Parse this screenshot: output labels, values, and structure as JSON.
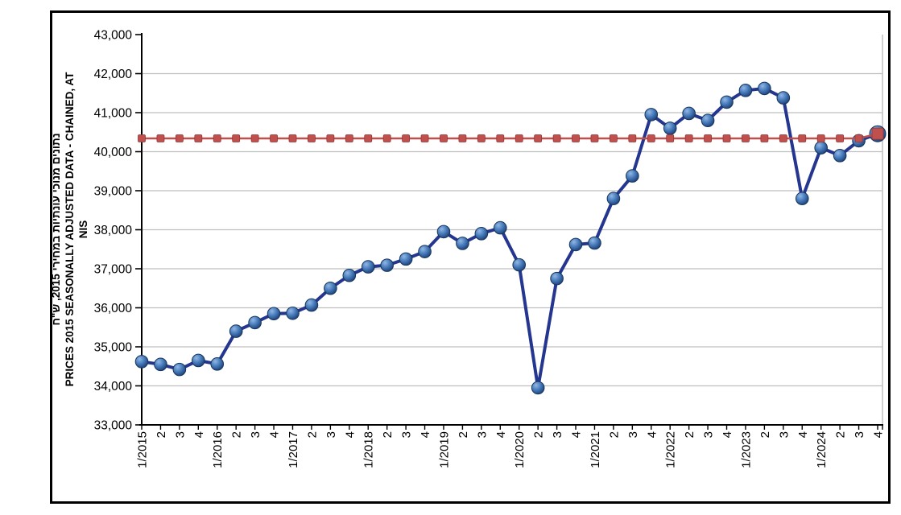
{
  "chart_data": {
    "type": "line",
    "title": "",
    "ylabel_lines": [
      "נתונים מנוכי עונתיות במחירי 2015, ש\"ח",
      "PRICES 2015 SEASONALLY ADJUSTED DATA - CHAINED, AT",
      "NIS"
    ],
    "categories": [
      "1/2015",
      "2",
      "3",
      "4",
      "1/2016",
      "2",
      "3",
      "4",
      "1/2017",
      "2",
      "3",
      "4",
      "1/2018",
      "2",
      "3",
      "4",
      "1/2019",
      "2",
      "3",
      "4",
      "1/2020",
      "2",
      "3",
      "4",
      "1/2021",
      "2",
      "3",
      "4",
      "1/2022",
      "2",
      "3",
      "4",
      "1/2023",
      "2",
      "3",
      "4",
      "1/2024",
      "2",
      "3",
      "4"
    ],
    "series": [
      {
        "name": "seasonally-adjusted-data",
        "marker": "circle",
        "color": "#24368F",
        "marker_fill": "#4A7EBD",
        "values": [
          34620,
          34550,
          34420,
          34650,
          34560,
          35400,
          35620,
          35850,
          35860,
          36070,
          36500,
          36830,
          37050,
          37090,
          37250,
          37440,
          37950,
          37650,
          37900,
          38050,
          37100,
          33950,
          36750,
          37620,
          37660,
          38800,
          39380,
          40950,
          40600,
          40980,
          40800,
          41270,
          41570,
          41620,
          41380,
          38800,
          40100,
          39900,
          40280,
          40460
        ]
      },
      {
        "name": "latest-level-reference",
        "marker": "square",
        "style": "dashed",
        "color": "#C0504D",
        "values": [
          40340,
          40340,
          40340,
          40340,
          40340,
          40340,
          40340,
          40340,
          40340,
          40340,
          40340,
          40340,
          40340,
          40340,
          40340,
          40340,
          40340,
          40340,
          40340,
          40340,
          40340,
          40340,
          40340,
          40340,
          40340,
          40340,
          40340,
          40340,
          40340,
          40340,
          40340,
          40340,
          40340,
          40340,
          40340,
          40340,
          40340,
          40340,
          40340,
          40460
        ]
      }
    ],
    "ylim": [
      33000,
      43000
    ],
    "ytick_step": 1000,
    "grid": true,
    "legend": "none",
    "gridline_color": "#BFBFBF",
    "axis_color": "#000000"
  }
}
